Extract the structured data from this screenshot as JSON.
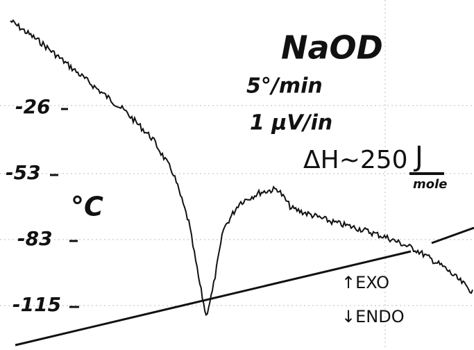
{
  "sample": {
    "name": "NaOD",
    "rate": "5°/min",
    "sensitivity": "1 µV/in"
  },
  "enthalpy": {
    "value": "ΔH~250",
    "unit_top": "J",
    "unit_bottom": "mole"
  },
  "axis": {
    "unit": "°C",
    "ticks": [
      "-26",
      "-53",
      "-83",
      "-115"
    ]
  },
  "legend": {
    "exo": "↑EXO",
    "endo": "↓ENDO"
  }
}
